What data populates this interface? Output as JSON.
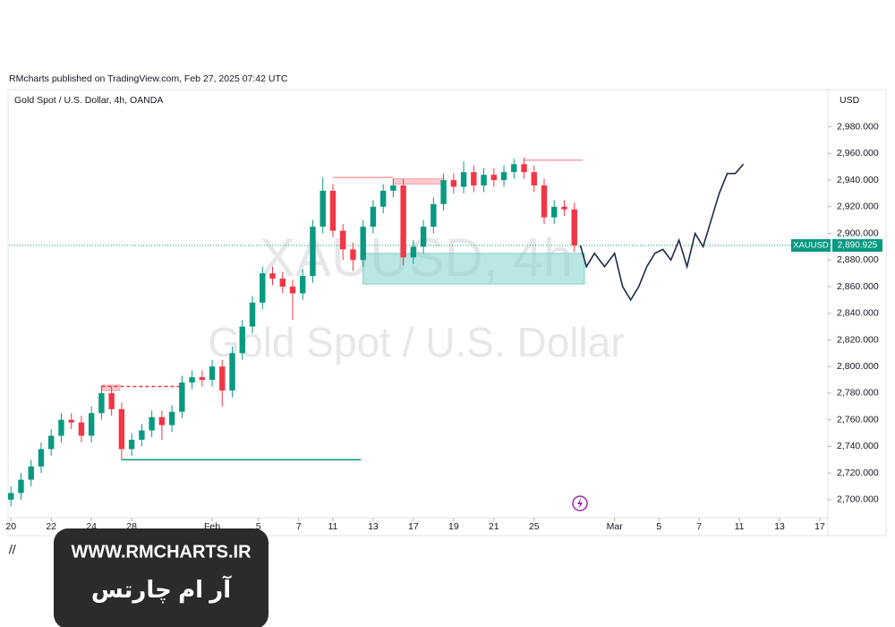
{
  "chart_data": {
    "type": "candlestick",
    "publisher": "RMcharts published on TradingView.com, Feb 27, 2025 07:42 UTC",
    "title": "Gold Spot / U.S. Dollar, 4h, OANDA",
    "currency": "USD",
    "watermark": "XAUUSD, 4h",
    "watermark_subtitle": "Gold Spot / U.S. Dollar",
    "symbol_label": "XAUUSD",
    "last_price": {
      "value": 2890.925,
      "label": "2,890.925"
    },
    "up_color": "#089981",
    "down_color": "#f23645",
    "projection_color": "#1e2a4a",
    "xlim": [
      -0.1,
      40.6
    ],
    "ylim": [
      2673,
      3008
    ],
    "xticks": [
      {
        "value": 0,
        "label": "20"
      },
      {
        "value": 2,
        "label": "22"
      },
      {
        "value": 4,
        "label": "24"
      },
      {
        "value": 6,
        "label": "28"
      },
      {
        "value": 10,
        "label": "Feb"
      },
      {
        "value": 12.3,
        "label": "5"
      },
      {
        "value": 14.3,
        "label": "7"
      },
      {
        "value": 16,
        "label": "11"
      },
      {
        "value": 18,
        "label": "13"
      },
      {
        "value": 20,
        "label": "17"
      },
      {
        "value": 22,
        "label": "19"
      },
      {
        "value": 24,
        "label": "21"
      },
      {
        "value": 26,
        "label": "25"
      },
      {
        "value": 30,
        "label": "Mar"
      },
      {
        "value": 32.2,
        "label": "5"
      },
      {
        "value": 34.2,
        "label": "7"
      },
      {
        "value": 36.2,
        "label": "11"
      },
      {
        "value": 38.2,
        "label": "13"
      },
      {
        "value": 40.2,
        "label": "17"
      }
    ],
    "yticks": [
      {
        "value": 2700,
        "label": "2,700.000"
      },
      {
        "value": 2720,
        "label": "2,720.000"
      },
      {
        "value": 2740,
        "label": "2,740.000"
      },
      {
        "value": 2760,
        "label": "2,760.000"
      },
      {
        "value": 2780,
        "label": "2,780.000"
      },
      {
        "value": 2800,
        "label": "2,800.000"
      },
      {
        "value": 2820,
        "label": "2,820.000"
      },
      {
        "value": 2840,
        "label": "2,840.000"
      },
      {
        "value": 2860,
        "label": "2,860.000"
      },
      {
        "value": 2880,
        "label": "2,880.000"
      },
      {
        "value": 2900,
        "label": "2,900.000"
      },
      {
        "value": 2920,
        "label": "2,920.000"
      },
      {
        "value": 2940,
        "label": "2,940.000"
      },
      {
        "value": 2960,
        "label": "2,960.000"
      },
      {
        "value": 2980,
        "label": "2,980.000"
      }
    ],
    "x": [
      0,
      0.5,
      1,
      1.5,
      2,
      2.5,
      3,
      3.5,
      4,
      4.5,
      5,
      5.5,
      6,
      6.5,
      7,
      7.5,
      8,
      8.5,
      9,
      9.5,
      10,
      10.5,
      11,
      11.5,
      12,
      12.5,
      13,
      13.5,
      14,
      14.5,
      15,
      15.5,
      16,
      16.5,
      17,
      17.5,
      18,
      18.5,
      19,
      19.5,
      20,
      20.5,
      21,
      21.5,
      22,
      22.5,
      23,
      23.5,
      24,
      24.5,
      25,
      25.5,
      26,
      26.5,
      27,
      27.5,
      28
    ],
    "open": [
      2700,
      2705,
      2715,
      2725,
      2738,
      2748,
      2760,
      2758,
      2748,
      2765,
      2780,
      2768,
      2738,
      2745,
      2752,
      2762,
      2756,
      2766,
      2788,
      2792,
      2790,
      2800,
      2782,
      2810,
      2830,
      2848,
      2870,
      2866,
      2860,
      2855,
      2868,
      2905,
      2932,
      2902,
      2888,
      2880,
      2905,
      2920,
      2932,
      2936,
      2882,
      2890,
      2905,
      2922,
      2940,
      2935,
      2946,
      2936,
      2944,
      2940,
      2946,
      2952,
      2946,
      2936,
      2912,
      2920,
      2918
    ],
    "high": [
      2710,
      2720,
      2730,
      2743,
      2753,
      2765,
      2765,
      2763,
      2770,
      2785,
      2785,
      2773,
      2750,
      2757,
      2767,
      2767,
      2771,
      2793,
      2797,
      2797,
      2805,
      2805,
      2815,
      2835,
      2853,
      2875,
      2875,
      2871,
      2865,
      2873,
      2910,
      2942,
      2937,
      2907,
      2893,
      2910,
      2925,
      2937,
      2941,
      2941,
      2895,
      2910,
      2927,
      2945,
      2945,
      2954,
      2951,
      2949,
      2949,
      2951,
      2956,
      2957,
      2951,
      2941,
      2925,
      2925,
      2923
    ],
    "low": [
      2695,
      2700,
      2710,
      2720,
      2733,
      2743,
      2753,
      2743,
      2743,
      2760,
      2763,
      2730,
      2733,
      2740,
      2747,
      2745,
      2751,
      2761,
      2783,
      2785,
      2785,
      2770,
      2777,
      2805,
      2825,
      2843,
      2861,
      2855,
      2835,
      2850,
      2863,
      2900,
      2897,
      2880,
      2872,
      2875,
      2900,
      2915,
      2927,
      2876,
      2877,
      2885,
      2900,
      2917,
      2930,
      2930,
      2931,
      2931,
      2935,
      2935,
      2941,
      2941,
      2931,
      2907,
      2907,
      2913,
      2886
    ],
    "close": [
      2705,
      2715,
      2725,
      2738,
      2748,
      2760,
      2758,
      2748,
      2765,
      2780,
      2768,
      2738,
      2745,
      2752,
      2762,
      2756,
      2766,
      2788,
      2792,
      2790,
      2800,
      2782,
      2810,
      2830,
      2848,
      2870,
      2866,
      2860,
      2855,
      2868,
      2905,
      2932,
      2902,
      2888,
      2880,
      2905,
      2920,
      2932,
      2936,
      2882,
      2890,
      2905,
      2922,
      2940,
      2935,
      2946,
      2936,
      2944,
      2940,
      2946,
      2952,
      2946,
      2936,
      2912,
      2920,
      2918,
      2891
    ],
    "projection": {
      "x": [
        28.3,
        28.6,
        29,
        29.5,
        30,
        30.4,
        30.8,
        31.2,
        31.6,
        32,
        32.4,
        32.8,
        33.2,
        33.6,
        34,
        34.4,
        34.8,
        35.2,
        35.6,
        36,
        36.4
      ],
      "values": [
        2891,
        2875,
        2885,
        2875,
        2885,
        2860,
        2850,
        2860,
        2875,
        2885,
        2888,
        2880,
        2895,
        2875,
        2900,
        2890,
        2910,
        2930,
        2945,
        2945,
        2952
      ]
    },
    "levels": [
      {
        "value": 2730,
        "x0": 5.5,
        "x1": 17.4,
        "color": "#089981",
        "dashed": false
      },
      {
        "value": 2785,
        "x0": 4.5,
        "x1": 8.5,
        "color": "#f23645",
        "dashed": true
      },
      {
        "value": 2942,
        "x0": 16,
        "x1": 19,
        "color": "#f7a1a8",
        "dashed": false
      },
      {
        "value": 2955,
        "x0": 25.5,
        "x1": 28.4,
        "color": "#f7a1a8",
        "dashed": false
      }
    ],
    "zones": [
      {
        "bottom": 2862,
        "top": 2885,
        "x0": 17.5,
        "x1": 28.5,
        "color": "#7fd3cc"
      },
      {
        "bottom": 2937,
        "top": 2941,
        "x0": 19,
        "x1": 21.5,
        "color": "#f7a1a8"
      },
      {
        "bottom": 2782,
        "top": 2786,
        "x0": 4.5,
        "x1": 5.4,
        "color": "#f7a1a8"
      }
    ]
  },
  "overlay": {
    "url": "WWW.RMCHARTS.IR",
    "name": "آر ام چارتس"
  }
}
